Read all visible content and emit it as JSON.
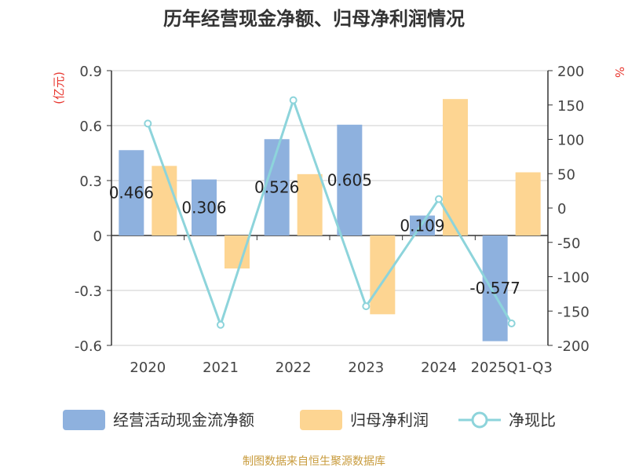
{
  "title": "历年经营现金净额、归母净利润情况",
  "left_unit": "(亿元)",
  "right_unit": "%",
  "source": "制图数据来自恒生聚源数据库",
  "colors": {
    "cashflow": "#8eb1de",
    "profit": "#fdd592",
    "ratio": "#8dd4db",
    "unit": "#e8372f",
    "source": "#c89b3c",
    "axis": "#333333",
    "grid": "#cccccc"
  },
  "chart_data": {
    "type": "bar",
    "categories": [
      "2020",
      "2021",
      "2022",
      "2023",
      "2024",
      "2025Q1-Q3"
    ],
    "y_left": {
      "min": -0.6,
      "max": 0.9,
      "ticks": [
        "0.9",
        "0.6",
        "0.3",
        "0",
        "-0.3",
        "-0.6"
      ]
    },
    "y_right": {
      "min": -200,
      "max": 200,
      "ticks": [
        "200",
        "150",
        "100",
        "50",
        "0",
        "-50",
        "-100",
        "-150",
        "-200"
      ]
    },
    "series": [
      {
        "name": "经营活动现金流净额",
        "type": "bar",
        "axis": "left",
        "values": [
          0.466,
          0.306,
          0.526,
          0.605,
          0.109,
          -0.577
        ],
        "labels": [
          "0.466",
          "0.306",
          "0.526",
          "0.605",
          "0.109",
          "-0.577"
        ]
      },
      {
        "name": "归母净利润",
        "type": "bar",
        "axis": "left",
        "values": [
          0.38,
          -0.18,
          0.335,
          -0.43,
          0.745,
          0.345
        ]
      },
      {
        "name": "净现比",
        "type": "line",
        "axis": "right",
        "values": [
          123,
          -170,
          157,
          -143,
          13,
          -168
        ]
      }
    ],
    "grid": true,
    "legend": "bottom"
  }
}
